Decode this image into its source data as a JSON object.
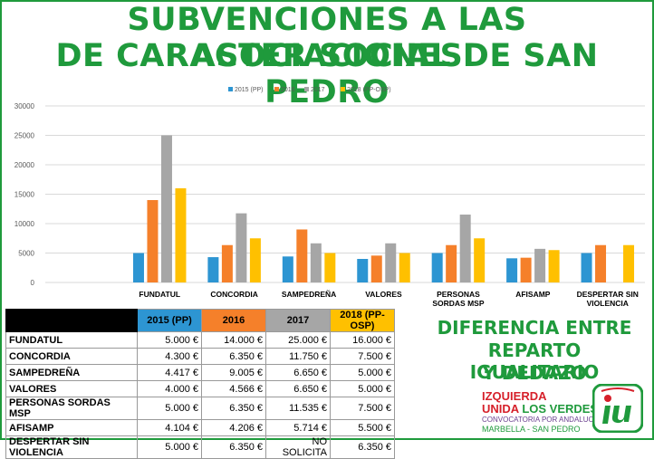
{
  "title": {
    "line1": "SUBVENCIONES A LAS ASOCIACIONES",
    "line2": "DE CARACTER SOCIAL DE SAN PEDRO"
  },
  "chart_data": {
    "type": "bar",
    "categories": [
      "FUNDATUL",
      "CONCORDIA",
      "SAMPEDREÑA",
      "VALORES",
      "PERSONAS SORDAS MSP",
      "AFISAMP",
      "DESPERTAR SIN VIOLENCIA"
    ],
    "category_lines": [
      [
        "FUNDATUL"
      ],
      [
        "CONCORDIA"
      ],
      [
        "SAMPEDREÑA"
      ],
      [
        "VALORES"
      ],
      [
        "PERSONAS",
        "SORDAS MSP"
      ],
      [
        "AFISAMP"
      ],
      [
        "DESPERTAR SIN",
        "VIOLENCIA"
      ]
    ],
    "series": [
      {
        "name": "2015 (PP)",
        "color": "#2d95d2",
        "values": [
          5000,
          4300,
          4417,
          4000,
          5000,
          4104,
          5000
        ]
      },
      {
        "name": "2016",
        "color": "#f5802a",
        "values": [
          14000,
          6350,
          9005,
          4566,
          6350,
          4206,
          6350
        ]
      },
      {
        "name": "2017",
        "color": "#a6a6a6",
        "values": [
          25000,
          11750,
          6650,
          6650,
          11535,
          5714,
          null
        ]
      },
      {
        "name": "2018 (PP-OSP)",
        "color": "#ffc000",
        "values": [
          16000,
          7500,
          5000,
          5000,
          7500,
          5500,
          6350
        ]
      }
    ],
    "yticks": [
      "0",
      "5000",
      "10000",
      "15000",
      "20000",
      "25000",
      "30000"
    ],
    "ylim": [
      0,
      30000
    ],
    "grid": true,
    "legend": "top"
  },
  "table": {
    "headers": [
      "",
      "2015 (PP)",
      "2016",
      "2017",
      "2018 (PP-OSP)"
    ],
    "rows": [
      [
        "FUNDATUL",
        "5.000 €",
        "14.000 €",
        "25.000 €",
        "16.000 €"
      ],
      [
        "CONCORDIA",
        "4.300 €",
        "6.350 €",
        "11.750 €",
        "7.500 €"
      ],
      [
        "SAMPEDREÑA",
        "4.417 €",
        "9.005 €",
        "6.650 €",
        "5.000 €"
      ],
      [
        "VALORES",
        "4.000 €",
        "4.566 €",
        "6.650 €",
        "5.000 €"
      ],
      [
        "PERSONAS SORDAS MSP",
        "5.000 €",
        "6.350 €",
        "11.535 €",
        "7.500 €"
      ],
      [
        "AFISAMP",
        "4.104 €",
        "4.206 €",
        "5.714 €",
        "5.500 €"
      ],
      [
        "DESPERTAR SIN VIOLENCIA",
        "5.000 €",
        "6.350 €",
        "NO SOLICITA",
        "6.350 €"
      ]
    ]
  },
  "side_text": [
    "DIFERENCIA ENTRE",
    "REPARTO IGUALITARIO",
    "Y DEDAZO"
  ],
  "logo": {
    "line1": "IZQUIERDA",
    "line2a": "UNIDA",
    "line2b": "LOS VERDES",
    "line3": "CONVOCATORIA POR ANDALUCÍA",
    "line4": "MARBELLA - SAN PEDRO",
    "mark": "iu",
    "colors": {
      "red": "#d6202a",
      "green": "#1f9a3c"
    }
  }
}
